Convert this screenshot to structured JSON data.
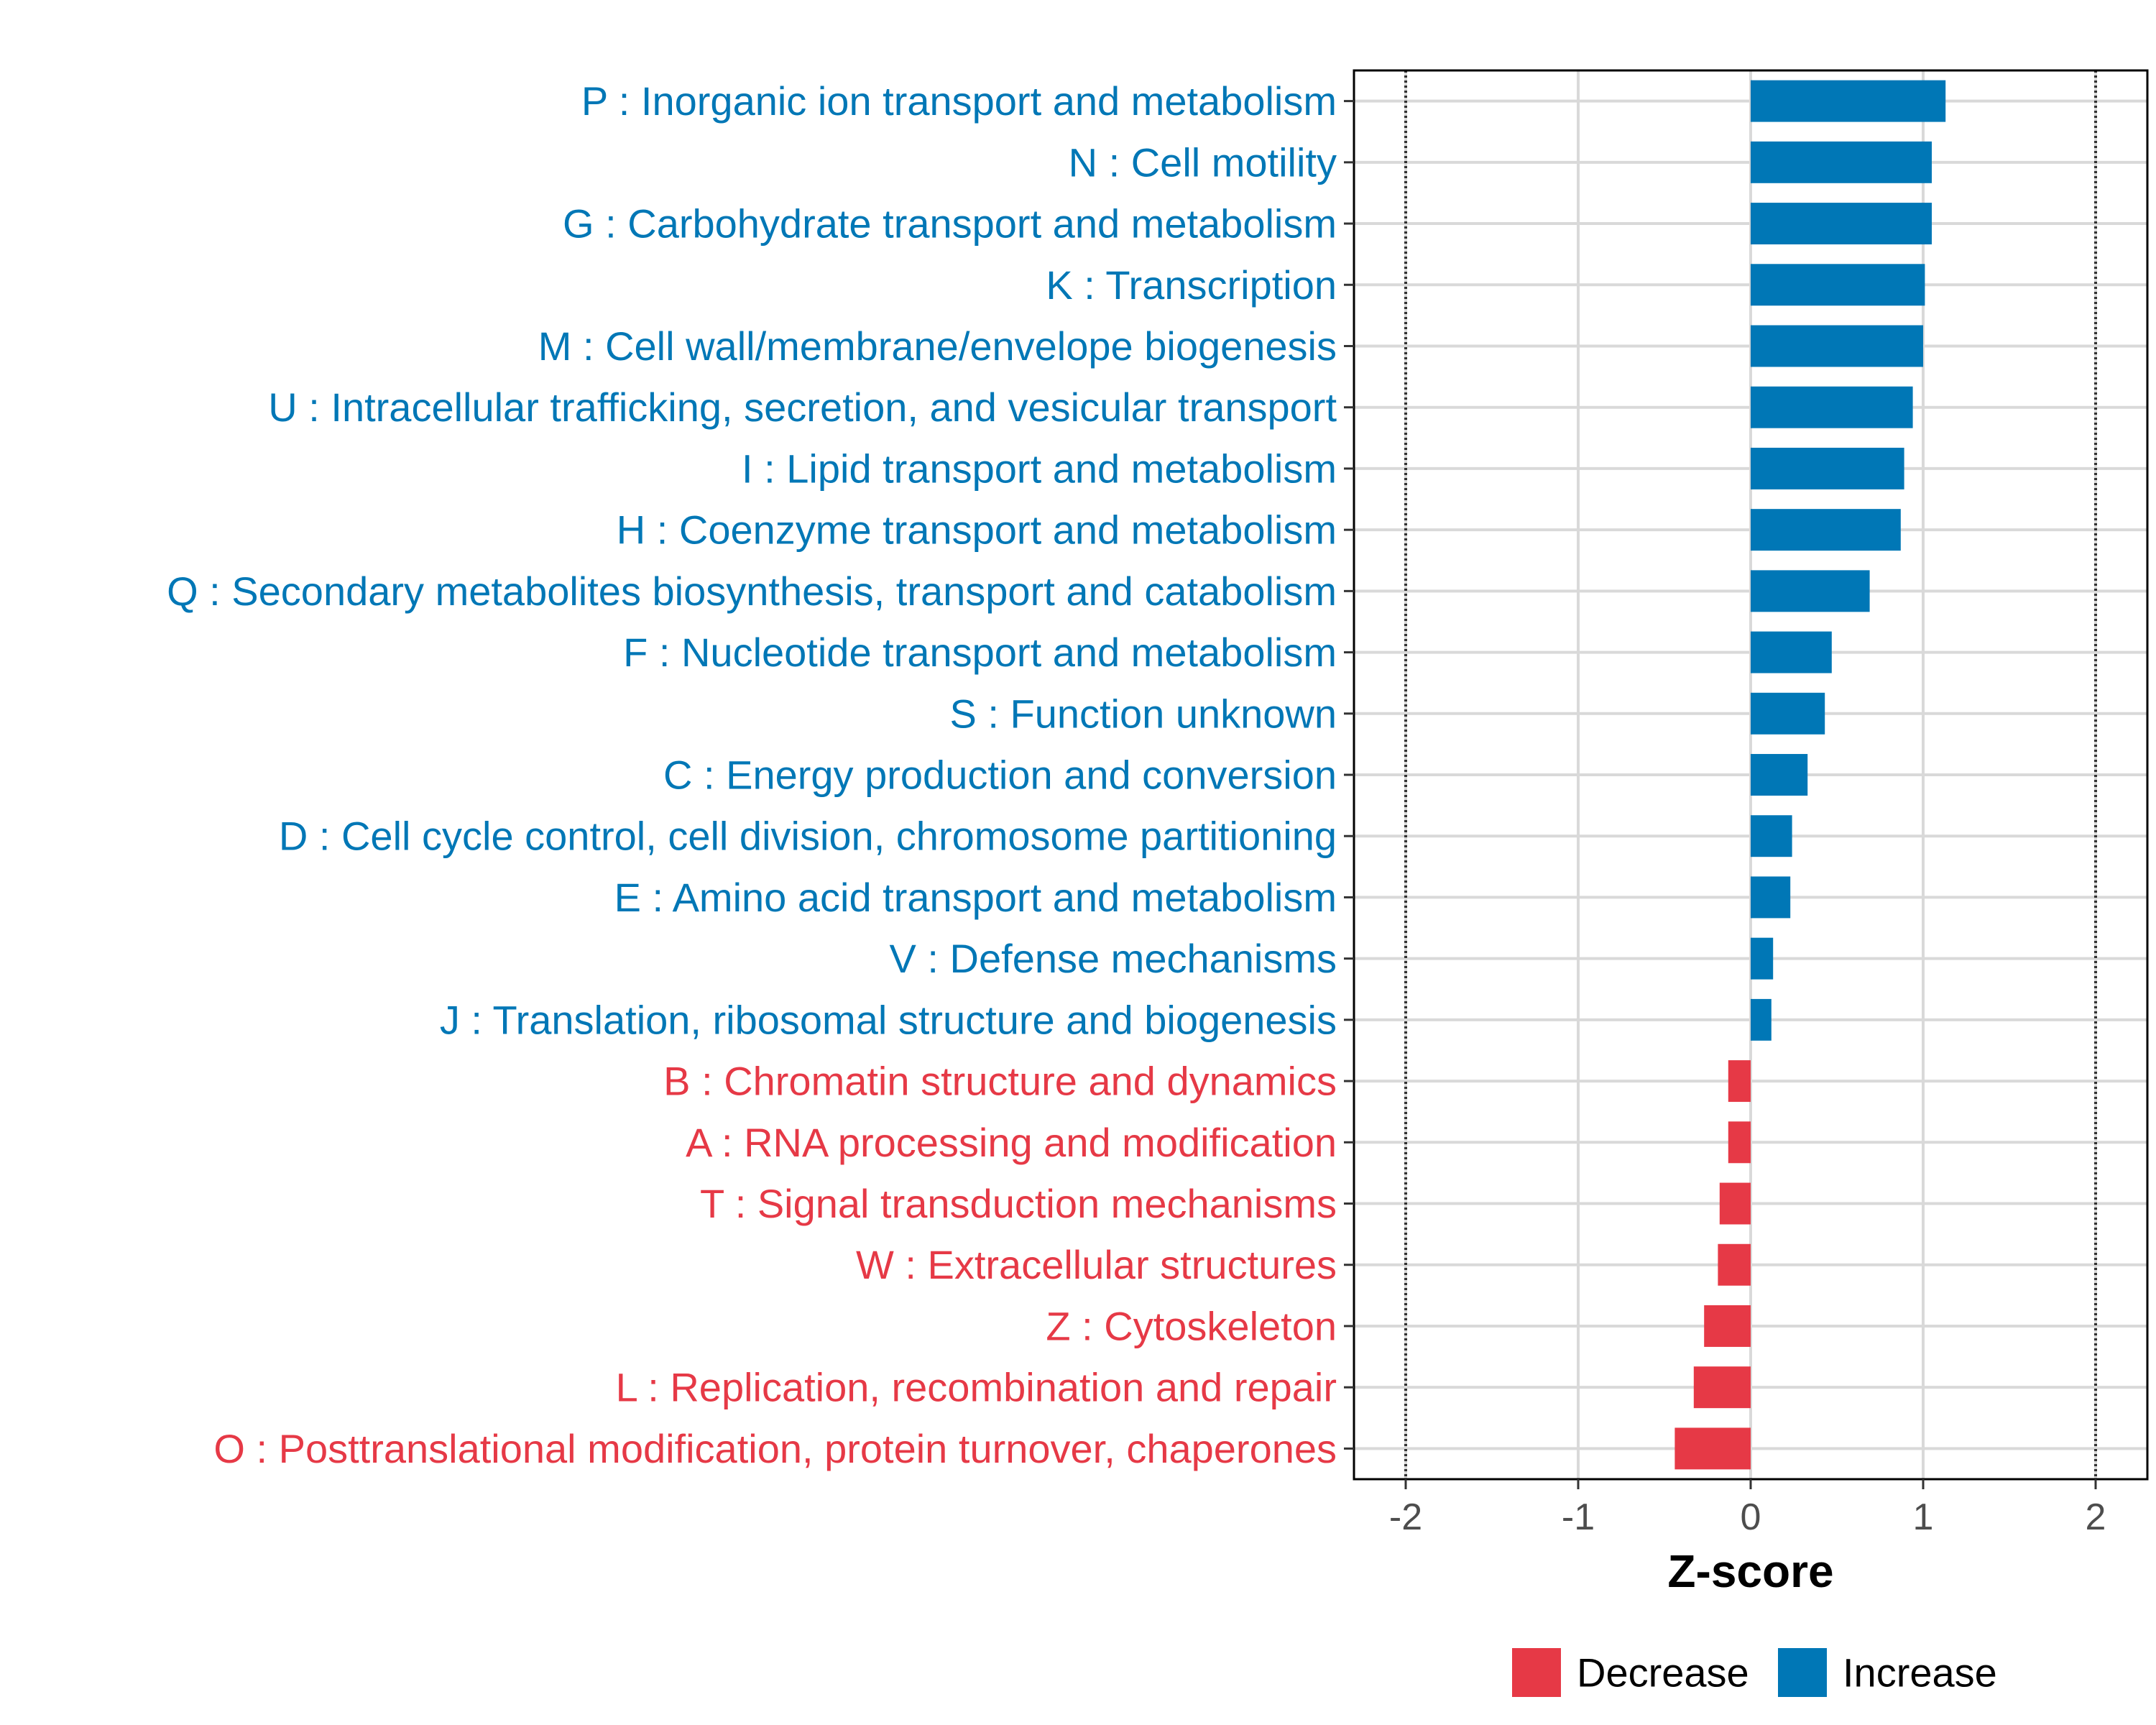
{
  "chart_data": {
    "type": "bar",
    "orientation": "horizontal",
    "xlabel": "Z-score",
    "xlim": [
      -2.3,
      2.3
    ],
    "x_ticks": [
      -2,
      -1,
      0,
      1,
      2
    ],
    "x_tick_labels": [
      "-2",
      "-1",
      "0",
      "1",
      "2"
    ],
    "reference_lines": [
      -2,
      2
    ],
    "grid": true,
    "legend_position": "bottom",
    "colors": {
      "Decrease": "#E63946",
      "Increase": "#0077B6"
    },
    "legend": [
      "Decrease",
      "Increase"
    ],
    "categories": [
      "P : Inorganic ion transport and metabolism",
      "N : Cell motility",
      "G : Carbohydrate transport and metabolism",
      "K : Transcription",
      "M : Cell wall/membrane/envelope biogenesis",
      "U : Intracellular trafficking, secretion, and vesicular transport",
      "I : Lipid transport and metabolism",
      "H : Coenzyme transport and metabolism",
      "Q : Secondary metabolites biosynthesis, transport and catabolism",
      "F : Nucleotide transport and metabolism",
      "S : Function unknown",
      "C : Energy production and conversion",
      "D : Cell cycle control, cell division, chromosome partitioning",
      "E : Amino acid transport and metabolism",
      "V : Defense mechanisms",
      "J : Translation, ribosomal structure and biogenesis",
      "B : Chromatin structure and dynamics",
      "A : RNA processing and modification",
      "T : Signal transduction mechanisms",
      "W : Extracellular structures",
      "Z : Cytoskeleton",
      "L : Replication, recombination and repair",
      "O : Posttranslational modification, protein turnover, chaperones"
    ],
    "values": [
      1.13,
      1.05,
      1.05,
      1.01,
      1.0,
      0.94,
      0.89,
      0.87,
      0.69,
      0.47,
      0.43,
      0.33,
      0.24,
      0.23,
      0.13,
      0.12,
      -0.13,
      -0.13,
      -0.18,
      -0.19,
      -0.27,
      -0.33,
      -0.44
    ],
    "groups": [
      "Increase",
      "Increase",
      "Increase",
      "Increase",
      "Increase",
      "Increase",
      "Increase",
      "Increase",
      "Increase",
      "Increase",
      "Increase",
      "Increase",
      "Increase",
      "Increase",
      "Increase",
      "Increase",
      "Decrease",
      "Decrease",
      "Decrease",
      "Decrease",
      "Decrease",
      "Decrease",
      "Decrease"
    ]
  }
}
